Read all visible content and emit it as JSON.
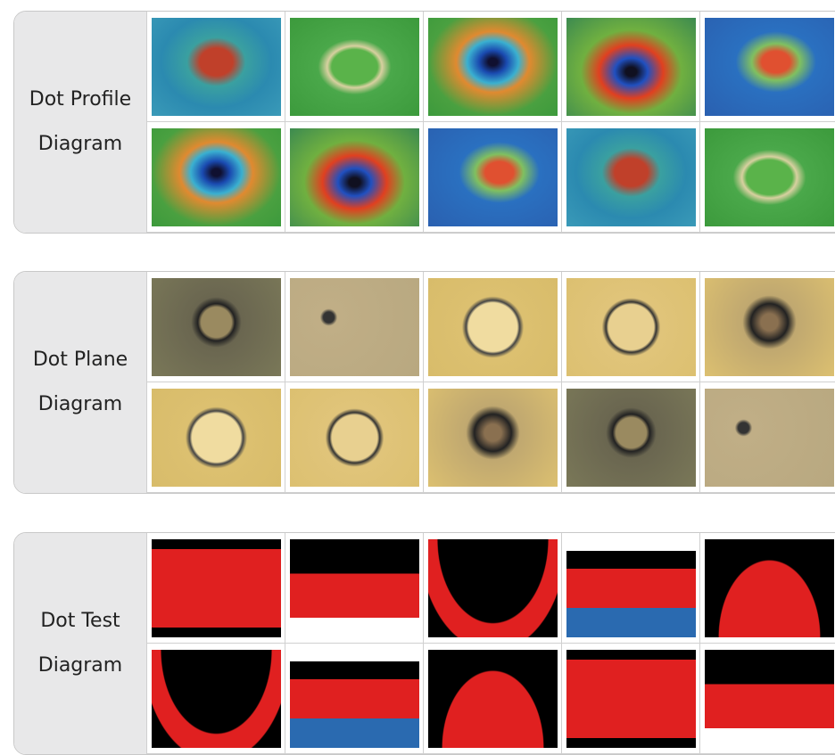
{
  "panels": [
    {
      "label": [
        "Dot Profile",
        "Diagram"
      ]
    },
    {
      "label": [
        "Dot Plane",
        "Diagram"
      ]
    },
    {
      "label": [
        "Dot Test",
        "Diagram"
      ]
    }
  ]
}
